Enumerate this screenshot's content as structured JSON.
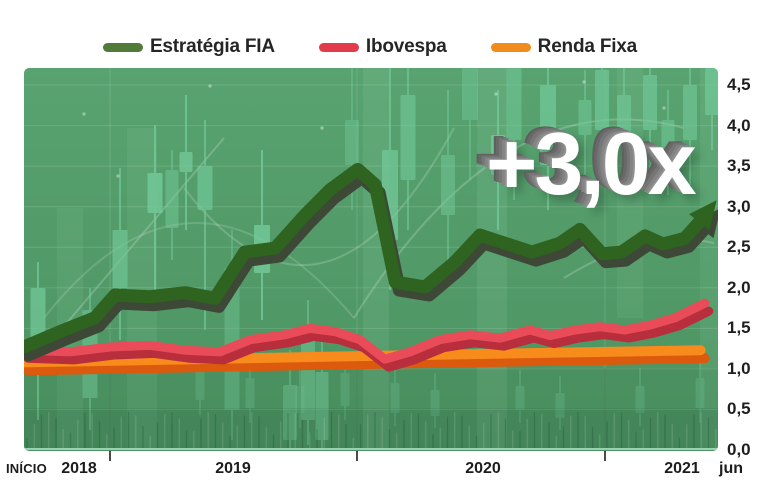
{
  "legend": {
    "items": [
      {
        "id": "estrategia-fia",
        "label": "Estratégia FIA",
        "color": "#527a38"
      },
      {
        "id": "ibovespa",
        "label": "Ibovespa",
        "color": "#e23c4b"
      },
      {
        "id": "renda-fixa",
        "label": "Renda Fixa",
        "color": "#f28b1c"
      }
    ]
  },
  "annotation": {
    "text": "+3,0x",
    "color": "#ffffff"
  },
  "axes": {
    "y_labels": [
      "4,5",
      "4,0",
      "3,5",
      "3,0",
      "2,5",
      "2,0",
      "1,5",
      "1,0",
      "0,5",
      "0,0"
    ],
    "x_labels": [
      "INÍCIO",
      "2018",
      "2019",
      "2020",
      "2021",
      "jun"
    ]
  },
  "chart_data": {
    "type": "line",
    "title": "",
    "legend_position": "top",
    "y_axis_side": "right",
    "ylim": [
      0,
      4.7
    ],
    "y_tick_step": 0.5,
    "x_tick_labels": [
      "INÍCIO",
      "2018",
      "2019",
      "2020",
      "2021",
      "jun"
    ],
    "background_color": "#55a06e",
    "annotation": "+3,0x",
    "series": [
      {
        "name": "Renda Fixa",
        "color": "#f78b1b",
        "shadow": "#db5a0d",
        "width": 10,
        "arrow": false,
        "points": [
          [
            0.0,
            1.08
          ],
          [
            0.5,
            1.16
          ],
          [
            0.975,
            1.23
          ]
        ]
      },
      {
        "name": "Ibovespa",
        "color": "#ea4b58",
        "shadow": "#b82e3c",
        "width": 9,
        "arrow": false,
        "points": [
          [
            0.0,
            1.23
          ],
          [
            0.066,
            1.21
          ],
          [
            0.124,
            1.27
          ],
          [
            0.182,
            1.29
          ],
          [
            0.232,
            1.23
          ],
          [
            0.282,
            1.21
          ],
          [
            0.326,
            1.36
          ],
          [
            0.376,
            1.42
          ],
          [
            0.412,
            1.5
          ],
          [
            0.448,
            1.46
          ],
          [
            0.484,
            1.36
          ],
          [
            0.52,
            1.12
          ],
          [
            0.556,
            1.21
          ],
          [
            0.599,
            1.36
          ],
          [
            0.643,
            1.42
          ],
          [
            0.686,
            1.38
          ],
          [
            0.729,
            1.48
          ],
          [
            0.758,
            1.41
          ],
          [
            0.794,
            1.48
          ],
          [
            0.83,
            1.52
          ],
          [
            0.866,
            1.48
          ],
          [
            0.902,
            1.54
          ],
          [
            0.938,
            1.63
          ],
          [
            0.981,
            1.81
          ]
        ]
      },
      {
        "name": "Estratégia FIA",
        "color": "#2f6320",
        "shadow": "#3d4837",
        "width": 13,
        "arrow": true,
        "points": [
          [
            0.0,
            1.27
          ],
          [
            0.052,
            1.46
          ],
          [
            0.102,
            1.63
          ],
          [
            0.131,
            1.91
          ],
          [
            0.182,
            1.89
          ],
          [
            0.232,
            1.94
          ],
          [
            0.275,
            1.87
          ],
          [
            0.318,
            2.44
          ],
          [
            0.362,
            2.49
          ],
          [
            0.405,
            2.9
          ],
          [
            0.441,
            3.21
          ],
          [
            0.481,
            3.46
          ],
          [
            0.506,
            3.27
          ],
          [
            0.535,
            2.07
          ],
          [
            0.578,
            2.01
          ],
          [
            0.621,
            2.32
          ],
          [
            0.657,
            2.65
          ],
          [
            0.7,
            2.53
          ],
          [
            0.732,
            2.44
          ],
          [
            0.772,
            2.55
          ],
          [
            0.801,
            2.72
          ],
          [
            0.833,
            2.42
          ],
          [
            0.861,
            2.44
          ],
          [
            0.895,
            2.64
          ],
          [
            0.921,
            2.54
          ],
          [
            0.952,
            2.61
          ],
          [
            0.974,
            2.82
          ],
          [
            0.998,
            3.08
          ]
        ]
      }
    ]
  }
}
